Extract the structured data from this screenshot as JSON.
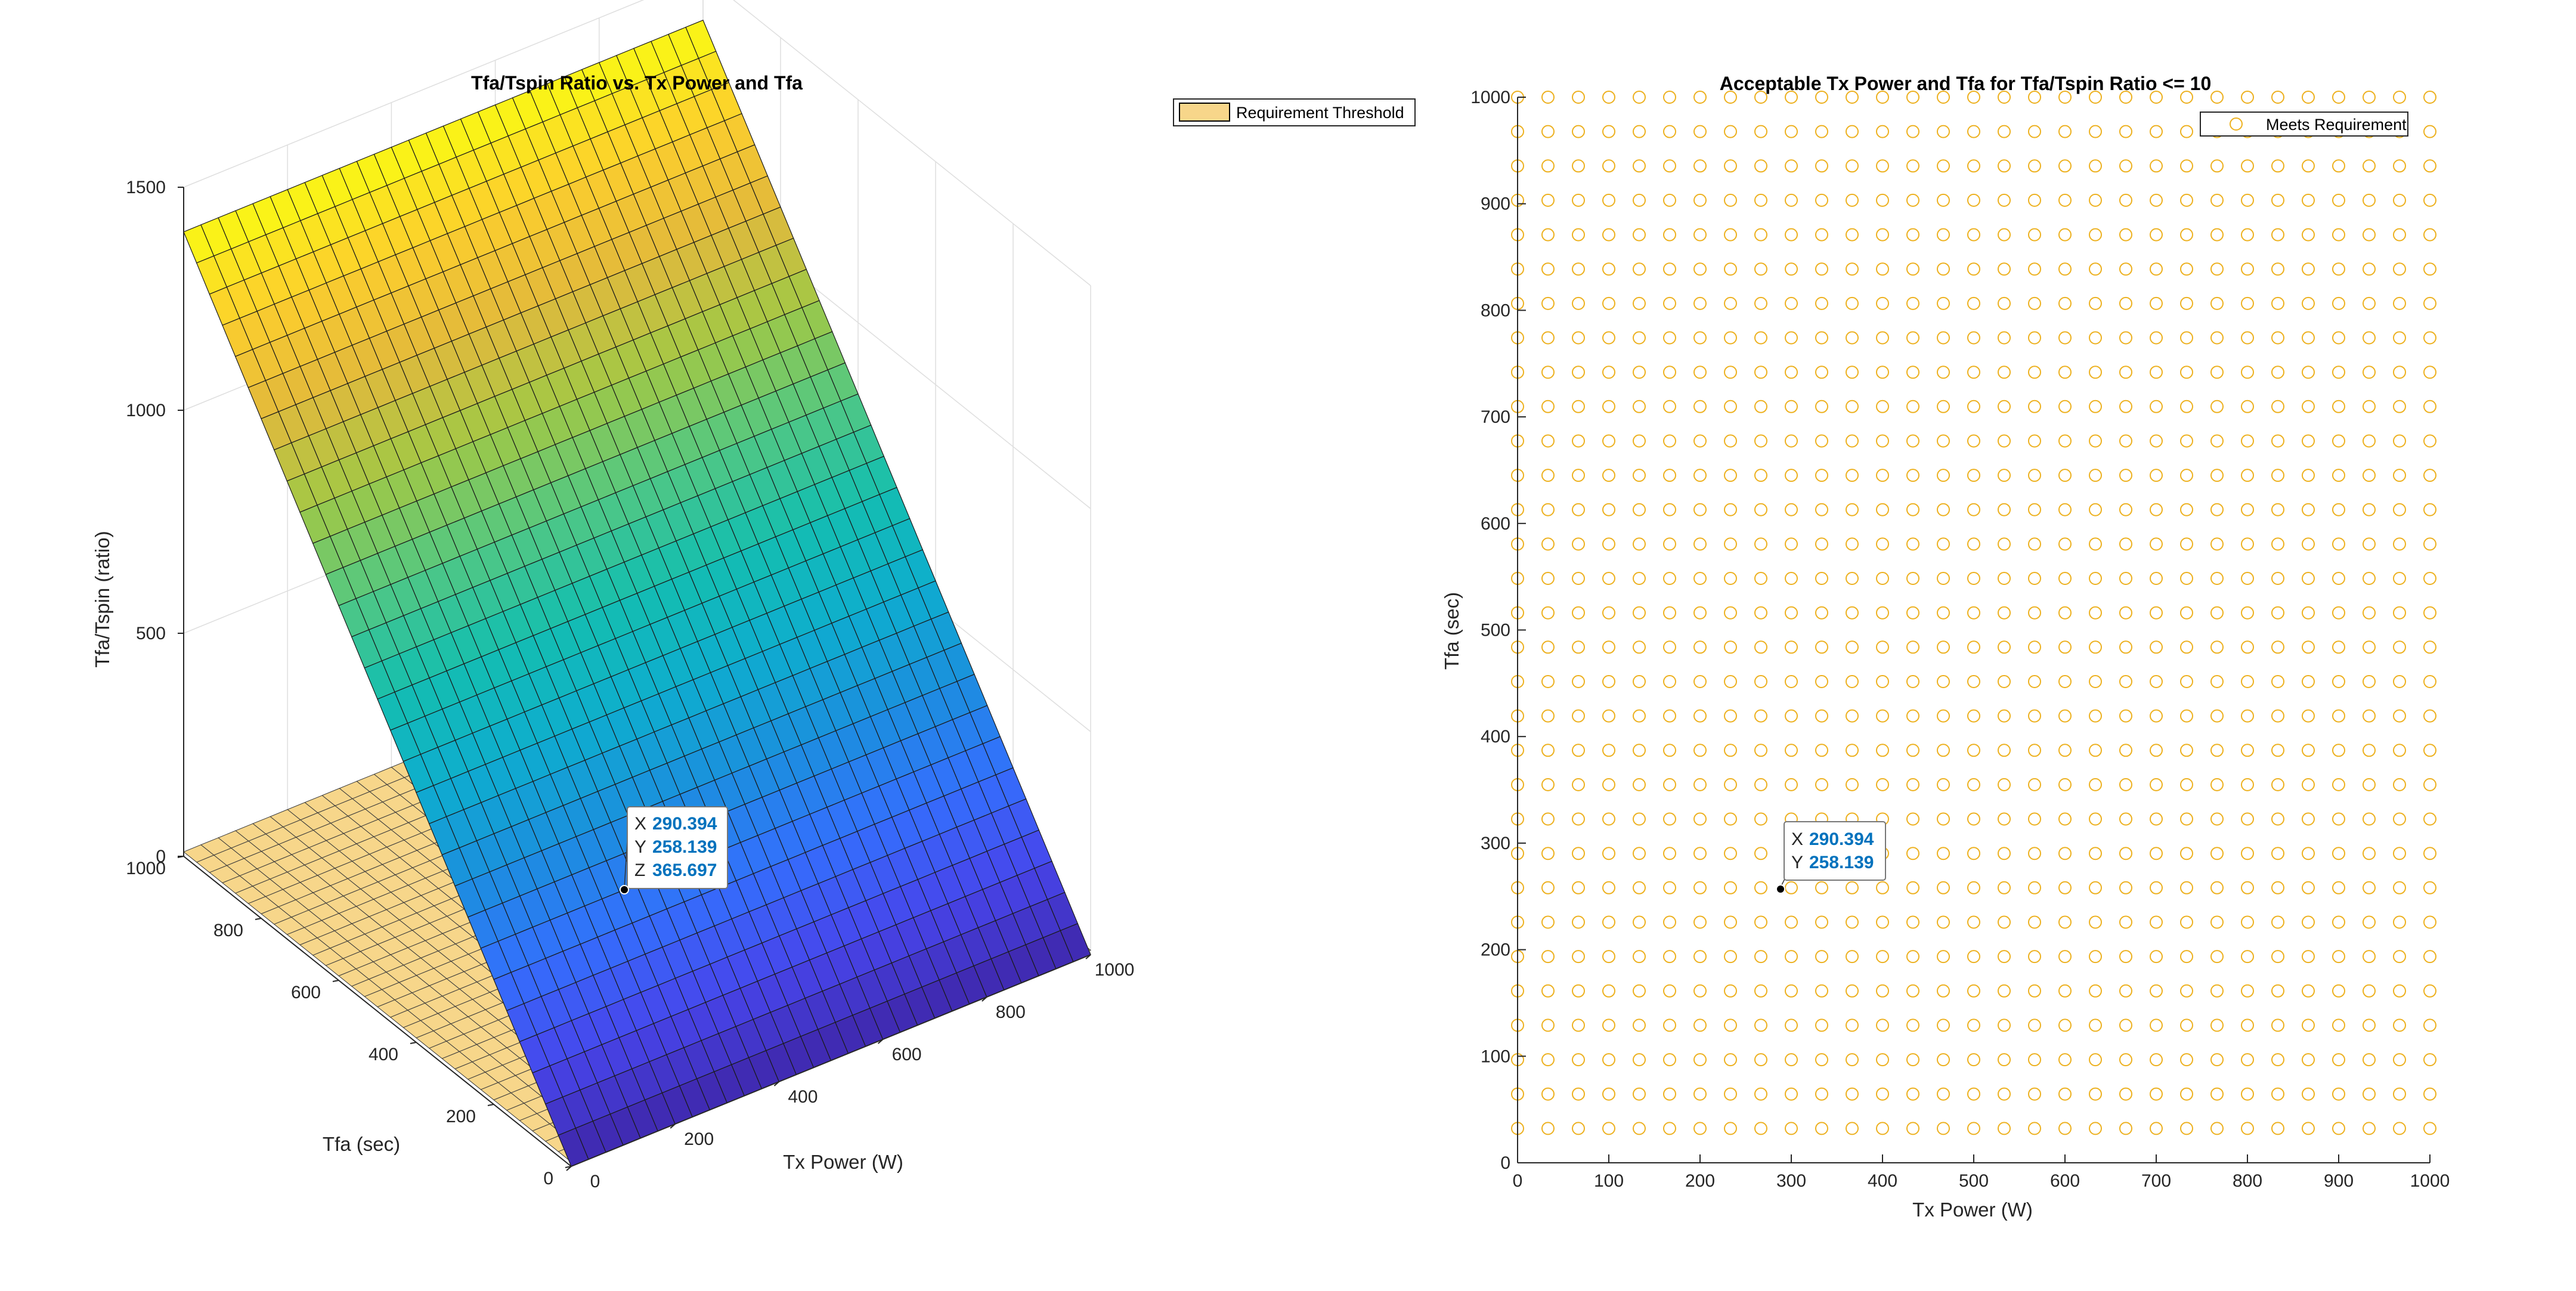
{
  "chart_data": [
    {
      "type": "surface3d",
      "title": "Tfa/Tspin Ratio vs. Tx Power and Tfa",
      "xlabel": "Tx Power (W)",
      "ylabel": "Tfa (sec)",
      "zlabel": "Tfa/Tspin (ratio)",
      "xlim": [
        0,
        1000
      ],
      "ylim": [
        0,
        1000
      ],
      "zlim": [
        0,
        1500
      ],
      "xticks": [
        "0",
        "200",
        "400",
        "600",
        "800",
        "1000"
      ],
      "yticks": [
        "0",
        "200",
        "400",
        "600",
        "800",
        "1000"
      ],
      "zticks": [
        "0",
        "500",
        "1000",
        "1500"
      ],
      "grid": true,
      "colormap": "parula",
      "surface": {
        "grid_points": 31,
        "corner_z": {
          "x0_y0": 0,
          "x1000_y0": 0,
          "x0_y1000": 1400,
          "x1000_y1000": 1400
        },
        "note_values_at_corners": "Tfa/Tspin rises linearly with Tfa; nearly flat in Tx Power"
      },
      "threshold_plane": {
        "name": "Requirement Threshold",
        "z": 10,
        "color": "#f7d68a"
      },
      "legend": {
        "position": "top-right",
        "entries": [
          "Requirement Threshold"
        ]
      },
      "datatip": {
        "x_key": "X",
        "x": "290.394",
        "y_key": "Y",
        "y": "258.139",
        "z_key": "Z",
        "z": "365.697"
      }
    },
    {
      "type": "scatter",
      "title": "Acceptable Tx Power and Tfa for Tfa/Tspin Ratio <= 10",
      "xlabel": "Tx Power (W)",
      "ylabel": "Tfa (sec)",
      "xlim": [
        0,
        1000
      ],
      "ylim": [
        0,
        1000
      ],
      "xticks": [
        "0",
        "100",
        "200",
        "300",
        "400",
        "500",
        "600",
        "700",
        "800",
        "900",
        "1000"
      ],
      "yticks": [
        "0",
        "100",
        "200",
        "300",
        "400",
        "500",
        "600",
        "700",
        "800",
        "900",
        "1000"
      ],
      "grid": false,
      "marker": "circle",
      "marker_color": "#edb120",
      "points_grid": {
        "x": [
          0,
          33.33,
          66.67,
          100,
          133.33,
          166.67,
          200,
          233.33,
          266.67,
          300,
          333.33,
          366.67,
          400,
          433.33,
          466.67,
          500,
          533.33,
          566.67,
          600,
          633.33,
          666.67,
          700,
          733.33,
          766.67,
          800,
          833.33,
          866.67,
          900,
          933.33,
          966.67,
          1000
        ],
        "y": [
          32.26,
          64.52,
          96.77,
          129.03,
          161.29,
          193.55,
          225.81,
          258.06,
          290.32,
          322.58,
          354.84,
          387.1,
          419.35,
          451.61,
          483.87,
          516.13,
          548.39,
          580.65,
          612.9,
          645.16,
          677.42,
          709.68,
          741.94,
          774.19,
          806.45,
          838.71,
          870.97,
          903.23,
          935.48,
          967.74,
          1000
        ]
      },
      "legend": {
        "position": "top-right",
        "entries": [
          "Meets Requirement"
        ]
      },
      "datatip": {
        "x_key": "X",
        "x": "290.394",
        "y_key": "Y",
        "y": "258.139"
      }
    }
  ]
}
